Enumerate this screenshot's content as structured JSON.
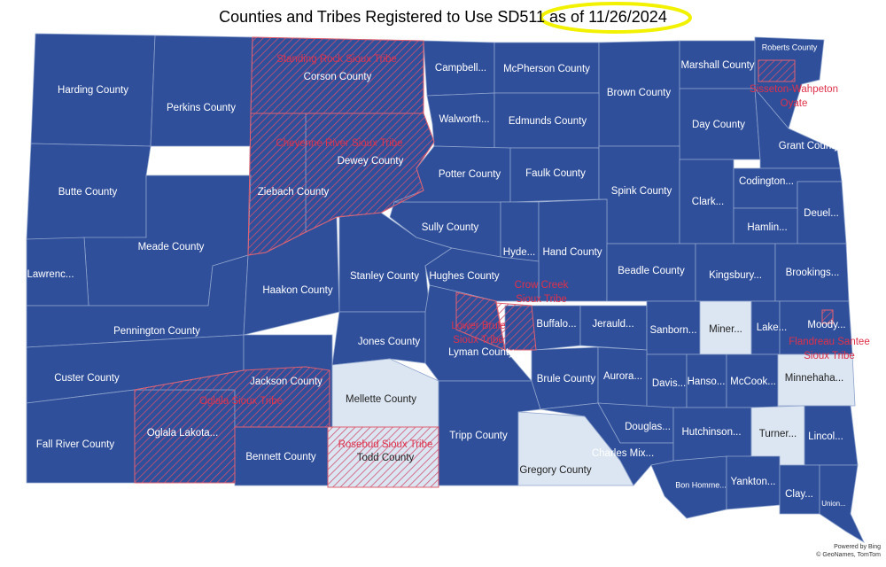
{
  "title": "Counties and Tribes Registered to Use SD511",
  "title_date": "as of 11/26/2024",
  "colors": {
    "registered": "#2f4f9b",
    "unregistered": "#dce6f2",
    "tribe": "#e0314a"
  },
  "counties": [
    {
      "name": "Harding County",
      "registered": true
    },
    {
      "name": "Perkins County",
      "registered": true
    },
    {
      "name": "Corson County",
      "registered": true
    },
    {
      "name": "Campbell...",
      "registered": true
    },
    {
      "name": "McPherson County",
      "registered": true
    },
    {
      "name": "Brown County",
      "registered": true
    },
    {
      "name": "Marshall County",
      "registered": true
    },
    {
      "name": "Roberts County",
      "registered": true
    },
    {
      "name": "Walworth...",
      "registered": true
    },
    {
      "name": "Edmunds County",
      "registered": true
    },
    {
      "name": "Day County",
      "registered": true
    },
    {
      "name": "Grant County",
      "registered": true
    },
    {
      "name": "Butte County",
      "registered": true
    },
    {
      "name": "Dewey County",
      "registered": true
    },
    {
      "name": "Ziebach County",
      "registered": true
    },
    {
      "name": "Meade County",
      "registered": true
    },
    {
      "name": "Lawrenc...",
      "registered": true
    },
    {
      "name": "Pennington County",
      "registered": true
    },
    {
      "name": "Custer County",
      "registered": true
    },
    {
      "name": "Fall River County",
      "registered": true
    },
    {
      "name": "Oglala Lakota...",
      "registered": true
    },
    {
      "name": "Jackson County",
      "registered": true
    },
    {
      "name": "Bennett County",
      "registered": true
    },
    {
      "name": "Haakon County",
      "registered": true
    },
    {
      "name": "Stanley County",
      "registered": true
    },
    {
      "name": "Sully County",
      "registered": true
    },
    {
      "name": "Potter County",
      "registered": true
    },
    {
      "name": "Faulk County",
      "registered": true
    },
    {
      "name": "Spink County",
      "registered": true
    },
    {
      "name": "Clark...",
      "registered": true
    },
    {
      "name": "Codington...",
      "registered": true
    },
    {
      "name": "Deuel...",
      "registered": true
    },
    {
      "name": "Hamlin...",
      "registered": true
    },
    {
      "name": "Hyde...",
      "registered": true
    },
    {
      "name": "Hand County",
      "registered": true
    },
    {
      "name": "Hughes County",
      "registered": true
    },
    {
      "name": "Beadle County",
      "registered": true
    },
    {
      "name": "Kingsbury...",
      "registered": true
    },
    {
      "name": "Brookings...",
      "registered": true
    },
    {
      "name": "Jones County",
      "registered": true
    },
    {
      "name": "Lyman County",
      "registered": true
    },
    {
      "name": "Buffalo...",
      "registered": true
    },
    {
      "name": "Jerauld...",
      "registered": true
    },
    {
      "name": "Sanborn...",
      "registered": true
    },
    {
      "name": "Miner...",
      "registered": false
    },
    {
      "name": "Lake...",
      "registered": true
    },
    {
      "name": "Moody...",
      "registered": true
    },
    {
      "name": "Mellette County",
      "registered": false
    },
    {
      "name": "Todd County",
      "registered": false
    },
    {
      "name": "Tripp County",
      "registered": true
    },
    {
      "name": "Brule County",
      "registered": true
    },
    {
      "name": "Aurora...",
      "registered": true
    },
    {
      "name": "Davis...",
      "registered": true
    },
    {
      "name": "Hanso...",
      "registered": true
    },
    {
      "name": "McCook...",
      "registered": true
    },
    {
      "name": "Minnehaha...",
      "registered": false
    },
    {
      "name": "Gregory County",
      "registered": false
    },
    {
      "name": "Douglas...",
      "registered": true
    },
    {
      "name": "Charles Mix...",
      "registered": true
    },
    {
      "name": "Hutchinson...",
      "registered": true
    },
    {
      "name": "Turner...",
      "registered": false
    },
    {
      "name": "Lincol...",
      "registered": true
    },
    {
      "name": "Bon Homme...",
      "registered": true
    },
    {
      "name": "Yankton...",
      "registered": true
    },
    {
      "name": "Clay...",
      "registered": true
    },
    {
      "name": "Union...",
      "registered": true
    }
  ],
  "tribes": [
    {
      "label_lines": [
        "Standing Rock Sioux Tribe"
      ]
    },
    {
      "label_lines": [
        "Cheyenne River Sioux Tribe"
      ]
    },
    {
      "label_lines": [
        "Sisseton-Wahpeton",
        "Oyate"
      ]
    },
    {
      "label_lines": [
        "Crow Creek",
        "Sioux Tribe"
      ]
    },
    {
      "label_lines": [
        "Lower Brule",
        "Sioux Tribe"
      ]
    },
    {
      "label_lines": [
        "Oglala Sioux Tribe"
      ]
    },
    {
      "label_lines": [
        "Rosebud Sioux Tribe"
      ]
    },
    {
      "label_lines": [
        "Flandreau Santee",
        "Sioux Tribe"
      ]
    }
  ],
  "attribution": [
    "Powered by Bing",
    "© GeoNames, TomTom"
  ]
}
